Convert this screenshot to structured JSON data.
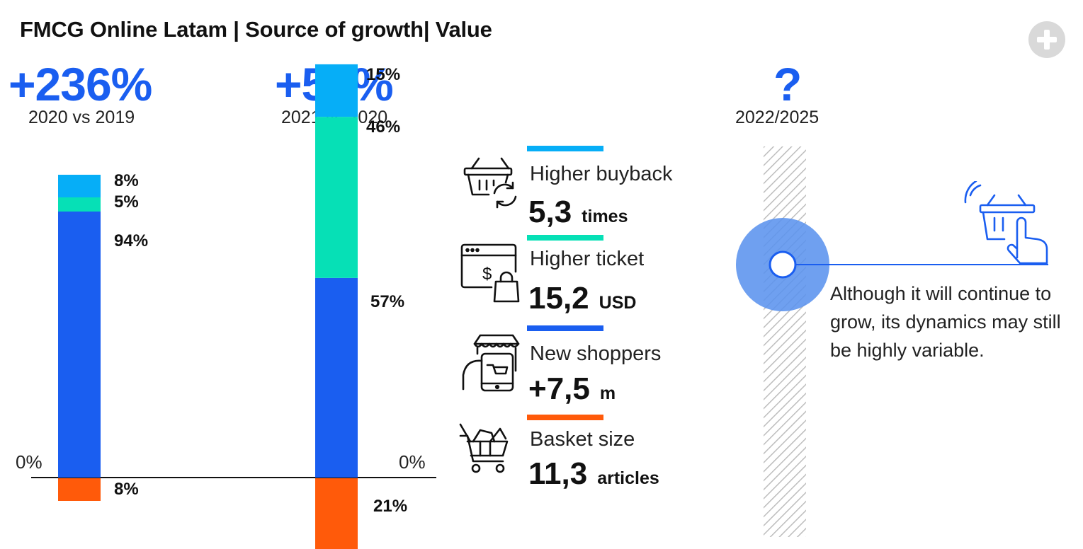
{
  "title": "FMCG Online Latam | Source of growth| Value",
  "colors": {
    "buyback": "#06aef7",
    "ticket": "#06e0b6",
    "shoppers": "#1a5ef0",
    "basket": "#ff5a0a",
    "highlight": "#5b93ee"
  },
  "periods": [
    {
      "growth": "+236%",
      "label": "2020 vs 2019",
      "zero_label": "0%"
    },
    {
      "growth": "+57%",
      "label": "2021 vs 2020",
      "zero_label": "0%"
    },
    {
      "growth": "?",
      "label": "2022/2025"
    }
  ],
  "chart_data": {
    "type": "bar",
    "stacked": true,
    "categories": [
      "2020 vs 2019",
      "2021 vs 2020"
    ],
    "series": [
      {
        "key": "shoppers",
        "values": [
          94,
          57
        ],
        "labels": [
          "94%",
          "57%"
        ]
      },
      {
        "key": "ticket",
        "values": [
          5,
          46
        ],
        "labels": [
          "5%",
          "46%"
        ]
      },
      {
        "key": "buyback",
        "values": [
          8,
          15
        ],
        "labels": [
          "8%",
          "15%"
        ]
      },
      {
        "key": "basket",
        "values": [
          -8,
          -21
        ],
        "labels": [
          "8%",
          "21%"
        ]
      }
    ]
  },
  "drivers": [
    {
      "key": "buyback",
      "label": "Higher buyback",
      "value": "5,3",
      "unit": "times",
      "icon": "basket-refresh-icon"
    },
    {
      "key": "ticket",
      "label": "Higher ticket",
      "value": "15,2",
      "unit": "USD",
      "icon": "web-payment-bag-icon"
    },
    {
      "key": "shoppers",
      "label": "New shoppers",
      "value": "+7,5",
      "unit": "m",
      "icon": "mobile-shop-icon"
    },
    {
      "key": "basket",
      "label": "Basket size",
      "value": "11,3",
      "unit": "articles",
      "icon": "shopping-cart-icon"
    }
  ],
  "outlook_note": "Although it will continue to grow, its dynamics may still be highly variable."
}
